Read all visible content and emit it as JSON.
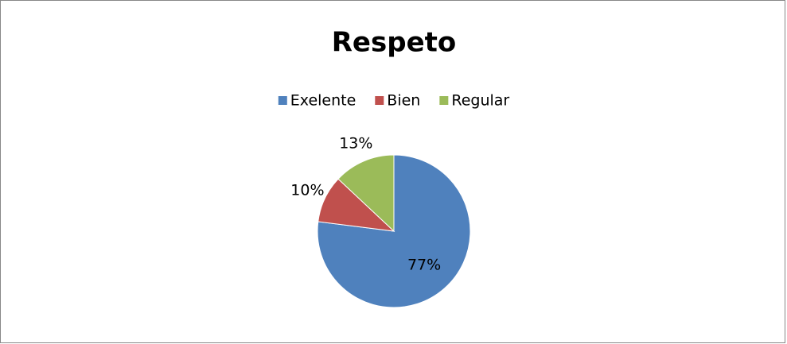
{
  "chart_data": {
    "type": "pie",
    "title": "Respeto",
    "categories": [
      "Exelente",
      "Bien",
      "Regular"
    ],
    "values": [
      77,
      10,
      13
    ],
    "value_labels": [
      "77%",
      "10%",
      "13%"
    ],
    "colors": [
      "#4f81bd",
      "#c0504d",
      "#9bbb59"
    ],
    "legend": "top"
  }
}
